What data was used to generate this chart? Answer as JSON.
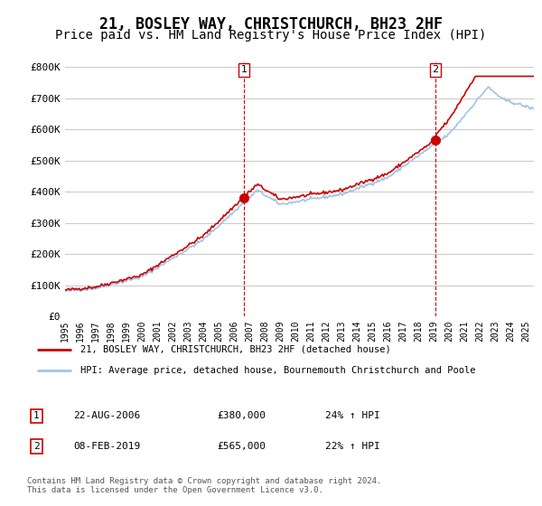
{
  "title": "21, BOSLEY WAY, CHRISTCHURCH, BH23 2HF",
  "subtitle": "Price paid vs. HM Land Registry's House Price Index (HPI)",
  "ylabel_ticks": [
    "£0",
    "£100K",
    "£200K",
    "£300K",
    "£400K",
    "£500K",
    "£600K",
    "£700K",
    "£800K"
  ],
  "ytick_values": [
    0,
    100000,
    200000,
    300000,
    400000,
    500000,
    600000,
    700000,
    800000
  ],
  "ylim": [
    0,
    820000
  ],
  "xlim_start": 1995.0,
  "xlim_end": 2025.5,
  "transaction1": {
    "date_x": 2006.64,
    "price": 380000,
    "label": "1",
    "pct": "24%",
    "date_str": "22-AUG-2006"
  },
  "transaction2": {
    "date_x": 2019.1,
    "price": 565000,
    "label": "2",
    "pct": "22%",
    "date_str": "08-FEB-2019"
  },
  "legend_line1": "21, BOSLEY WAY, CHRISTCHURCH, BH23 2HF (detached house)",
  "legend_line2": "HPI: Average price, detached house, Bournemouth Christchurch and Poole",
  "table_row1": [
    "1",
    "22-AUG-2006",
    "£380,000",
    "24% ↑ HPI"
  ],
  "table_row2": [
    "2",
    "08-FEB-2019",
    "£565,000",
    "22% ↑ HPI"
  ],
  "footnote": "Contains HM Land Registry data © Crown copyright and database right 2024.\nThis data is licensed under the Open Government Licence v3.0.",
  "line_color_red": "#cc0000",
  "line_color_blue": "#a0c4e8",
  "vline_color": "#cc0000",
  "marker_color_red": "#cc0000",
  "background_color": "#ffffff",
  "grid_color": "#cccccc",
  "title_fontsize": 12,
  "subtitle_fontsize": 10,
  "tick_fontsize": 8,
  "xticks": [
    1995,
    1996,
    1997,
    1998,
    1999,
    2000,
    2001,
    2002,
    2003,
    2004,
    2005,
    2006,
    2007,
    2008,
    2009,
    2010,
    2011,
    2012,
    2013,
    2014,
    2015,
    2016,
    2017,
    2018,
    2019,
    2020,
    2021,
    2022,
    2023,
    2024,
    2025
  ]
}
